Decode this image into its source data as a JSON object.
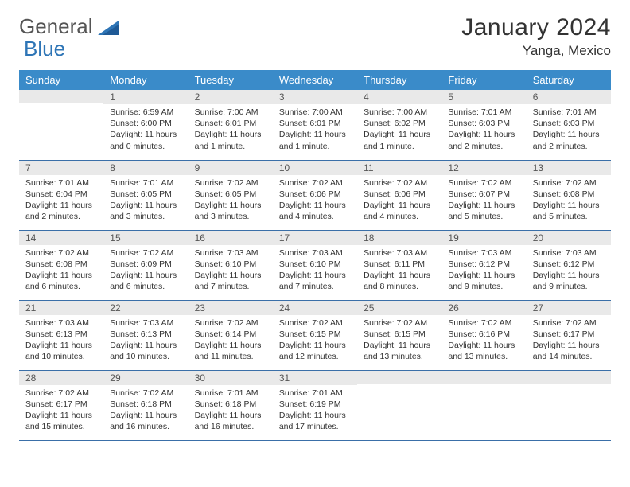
{
  "brand": {
    "word1": "General",
    "word2": "Blue"
  },
  "title": "January 2024",
  "location": "Yanga, Mexico",
  "header_bg": "#3a8bc9",
  "header_fg": "#ffffff",
  "rule_color": "#3a6fa8",
  "daynum_bg": "#e9e9e9",
  "text_color": "#333333",
  "font_family": "Arial, Helvetica, sans-serif",
  "day_headers": [
    "Sunday",
    "Monday",
    "Tuesday",
    "Wednesday",
    "Thursday",
    "Friday",
    "Saturday"
  ],
  "weeks": [
    [
      {
        "n": "",
        "sr": "",
        "ss": "",
        "dl": ""
      },
      {
        "n": "1",
        "sr": "Sunrise: 6:59 AM",
        "ss": "Sunset: 6:00 PM",
        "dl": "Daylight: 11 hours and 0 minutes."
      },
      {
        "n": "2",
        "sr": "Sunrise: 7:00 AM",
        "ss": "Sunset: 6:01 PM",
        "dl": "Daylight: 11 hours and 1 minute."
      },
      {
        "n": "3",
        "sr": "Sunrise: 7:00 AM",
        "ss": "Sunset: 6:01 PM",
        "dl": "Daylight: 11 hours and 1 minute."
      },
      {
        "n": "4",
        "sr": "Sunrise: 7:00 AM",
        "ss": "Sunset: 6:02 PM",
        "dl": "Daylight: 11 hours and 1 minute."
      },
      {
        "n": "5",
        "sr": "Sunrise: 7:01 AM",
        "ss": "Sunset: 6:03 PM",
        "dl": "Daylight: 11 hours and 2 minutes."
      },
      {
        "n": "6",
        "sr": "Sunrise: 7:01 AM",
        "ss": "Sunset: 6:03 PM",
        "dl": "Daylight: 11 hours and 2 minutes."
      }
    ],
    [
      {
        "n": "7",
        "sr": "Sunrise: 7:01 AM",
        "ss": "Sunset: 6:04 PM",
        "dl": "Daylight: 11 hours and 2 minutes."
      },
      {
        "n": "8",
        "sr": "Sunrise: 7:01 AM",
        "ss": "Sunset: 6:05 PM",
        "dl": "Daylight: 11 hours and 3 minutes."
      },
      {
        "n": "9",
        "sr": "Sunrise: 7:02 AM",
        "ss": "Sunset: 6:05 PM",
        "dl": "Daylight: 11 hours and 3 minutes."
      },
      {
        "n": "10",
        "sr": "Sunrise: 7:02 AM",
        "ss": "Sunset: 6:06 PM",
        "dl": "Daylight: 11 hours and 4 minutes."
      },
      {
        "n": "11",
        "sr": "Sunrise: 7:02 AM",
        "ss": "Sunset: 6:06 PM",
        "dl": "Daylight: 11 hours and 4 minutes."
      },
      {
        "n": "12",
        "sr": "Sunrise: 7:02 AM",
        "ss": "Sunset: 6:07 PM",
        "dl": "Daylight: 11 hours and 5 minutes."
      },
      {
        "n": "13",
        "sr": "Sunrise: 7:02 AM",
        "ss": "Sunset: 6:08 PM",
        "dl": "Daylight: 11 hours and 5 minutes."
      }
    ],
    [
      {
        "n": "14",
        "sr": "Sunrise: 7:02 AM",
        "ss": "Sunset: 6:08 PM",
        "dl": "Daylight: 11 hours and 6 minutes."
      },
      {
        "n": "15",
        "sr": "Sunrise: 7:02 AM",
        "ss": "Sunset: 6:09 PM",
        "dl": "Daylight: 11 hours and 6 minutes."
      },
      {
        "n": "16",
        "sr": "Sunrise: 7:03 AM",
        "ss": "Sunset: 6:10 PM",
        "dl": "Daylight: 11 hours and 7 minutes."
      },
      {
        "n": "17",
        "sr": "Sunrise: 7:03 AM",
        "ss": "Sunset: 6:10 PM",
        "dl": "Daylight: 11 hours and 7 minutes."
      },
      {
        "n": "18",
        "sr": "Sunrise: 7:03 AM",
        "ss": "Sunset: 6:11 PM",
        "dl": "Daylight: 11 hours and 8 minutes."
      },
      {
        "n": "19",
        "sr": "Sunrise: 7:03 AM",
        "ss": "Sunset: 6:12 PM",
        "dl": "Daylight: 11 hours and 9 minutes."
      },
      {
        "n": "20",
        "sr": "Sunrise: 7:03 AM",
        "ss": "Sunset: 6:12 PM",
        "dl": "Daylight: 11 hours and 9 minutes."
      }
    ],
    [
      {
        "n": "21",
        "sr": "Sunrise: 7:03 AM",
        "ss": "Sunset: 6:13 PM",
        "dl": "Daylight: 11 hours and 10 minutes."
      },
      {
        "n": "22",
        "sr": "Sunrise: 7:03 AM",
        "ss": "Sunset: 6:13 PM",
        "dl": "Daylight: 11 hours and 10 minutes."
      },
      {
        "n": "23",
        "sr": "Sunrise: 7:02 AM",
        "ss": "Sunset: 6:14 PM",
        "dl": "Daylight: 11 hours and 11 minutes."
      },
      {
        "n": "24",
        "sr": "Sunrise: 7:02 AM",
        "ss": "Sunset: 6:15 PM",
        "dl": "Daylight: 11 hours and 12 minutes."
      },
      {
        "n": "25",
        "sr": "Sunrise: 7:02 AM",
        "ss": "Sunset: 6:15 PM",
        "dl": "Daylight: 11 hours and 13 minutes."
      },
      {
        "n": "26",
        "sr": "Sunrise: 7:02 AM",
        "ss": "Sunset: 6:16 PM",
        "dl": "Daylight: 11 hours and 13 minutes."
      },
      {
        "n": "27",
        "sr": "Sunrise: 7:02 AM",
        "ss": "Sunset: 6:17 PM",
        "dl": "Daylight: 11 hours and 14 minutes."
      }
    ],
    [
      {
        "n": "28",
        "sr": "Sunrise: 7:02 AM",
        "ss": "Sunset: 6:17 PM",
        "dl": "Daylight: 11 hours and 15 minutes."
      },
      {
        "n": "29",
        "sr": "Sunrise: 7:02 AM",
        "ss": "Sunset: 6:18 PM",
        "dl": "Daylight: 11 hours and 16 minutes."
      },
      {
        "n": "30",
        "sr": "Sunrise: 7:01 AM",
        "ss": "Sunset: 6:18 PM",
        "dl": "Daylight: 11 hours and 16 minutes."
      },
      {
        "n": "31",
        "sr": "Sunrise: 7:01 AM",
        "ss": "Sunset: 6:19 PM",
        "dl": "Daylight: 11 hours and 17 minutes."
      },
      {
        "n": "",
        "sr": "",
        "ss": "",
        "dl": ""
      },
      {
        "n": "",
        "sr": "",
        "ss": "",
        "dl": ""
      },
      {
        "n": "",
        "sr": "",
        "ss": "",
        "dl": ""
      }
    ]
  ]
}
